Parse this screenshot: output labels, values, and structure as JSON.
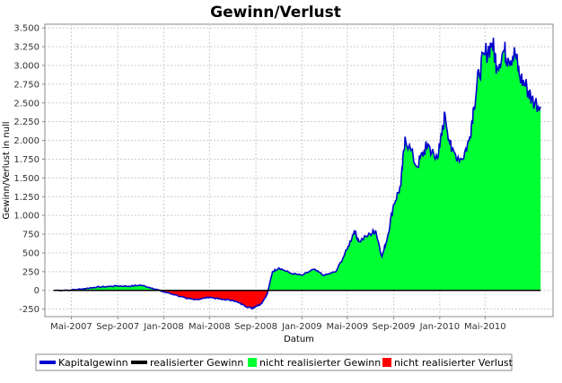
{
  "chart_data": {
    "type": "area",
    "title": "Gewinn/Verlust",
    "xlabel": "Datum",
    "ylabel": "Gewinn/Verlust in null",
    "ylim": [
      -350,
      3550
    ],
    "xlim": [
      "2007-02-20",
      "2010-10-28"
    ],
    "yticks": [
      -250,
      0,
      250,
      500,
      750,
      1000,
      1250,
      1500,
      1750,
      2000,
      2250,
      2500,
      2750,
      3000,
      3250,
      3500
    ],
    "ytick_labels": [
      "-250",
      "0",
      "250",
      "500",
      "750",
      "1.000",
      "1.250",
      "1.500",
      "1.750",
      "2.000",
      "2.250",
      "2.500",
      "2.750",
      "3.000",
      "3.250",
      "3.500"
    ],
    "xticks": [
      "2007-05-01",
      "2007-09-01",
      "2008-01-01",
      "2008-05-01",
      "2008-09-01",
      "2009-01-01",
      "2009-05-01",
      "2009-09-01",
      "2010-01-01",
      "2010-05-01"
    ],
    "xtick_labels": [
      "Mai-2007",
      "Sep-2007",
      "Jan-2008",
      "Mai-2008",
      "Sep-2008",
      "Jan-2009",
      "Mai-2009",
      "Sep-2009",
      "Jan-2010",
      "Mai-2010"
    ],
    "grid": true,
    "legend_position": "bottom",
    "series": [
      {
        "name": "Kapitalgewinn",
        "color": "#0000cc",
        "x": [
          "2007-03-15",
          "2007-05-01",
          "2007-06-01",
          "2007-07-01",
          "2007-08-01",
          "2007-09-01",
          "2007-10-01",
          "2007-11-01",
          "2007-12-01",
          "2008-01-01",
          "2008-02-01",
          "2008-03-01",
          "2008-04-01",
          "2008-05-01",
          "2008-06-01",
          "2008-07-01",
          "2008-08-01",
          "2008-08-20",
          "2008-09-01",
          "2008-09-15",
          "2008-10-01",
          "2008-10-15",
          "2008-11-01",
          "2008-12-01",
          "2009-01-01",
          "2009-02-01",
          "2009-03-01",
          "2009-04-01",
          "2009-05-01",
          "2009-05-20",
          "2009-06-01",
          "2009-07-01",
          "2009-07-15",
          "2009-08-01",
          "2009-08-15",
          "2009-09-01",
          "2009-09-20",
          "2009-10-01",
          "2009-11-01",
          "2009-11-20",
          "2009-12-01",
          "2009-12-20",
          "2010-01-01",
          "2010-01-15",
          "2010-02-01",
          "2010-03-01",
          "2010-03-20",
          "2010-04-01",
          "2010-04-15",
          "2010-05-01",
          "2010-05-20",
          "2010-06-01",
          "2010-06-20",
          "2010-07-01",
          "2010-07-20",
          "2010-08-01",
          "2010-08-20",
          "2010-09-01",
          "2010-09-25"
        ],
        "values": [
          0,
          5,
          20,
          40,
          50,
          60,
          55,
          70,
          30,
          -20,
          -60,
          -110,
          -120,
          -90,
          -120,
          -130,
          -200,
          -240,
          -210,
          -180,
          -50,
          250,
          300,
          230,
          200,
          280,
          200,
          250,
          550,
          800,
          650,
          750,
          800,
          450,
          700,
          1150,
          1400,
          2050,
          1650,
          1850,
          1950,
          1750,
          1900,
          2350,
          1850,
          1750,
          2000,
          2450,
          2900,
          3150,
          3300,
          3000,
          3200,
          3100,
          3150,
          2850,
          2700,
          2550,
          2450
        ]
      },
      {
        "name": "realisierter Gewinn",
        "color": "#000000",
        "x": [
          "2007-03-15",
          "2010-09-25"
        ],
        "values": [
          0,
          0
        ]
      },
      {
        "name": "nicht realisierter Gewinn",
        "color": "#00ff33"
      },
      {
        "name": "nicht realisierter Verlust",
        "color": "#ff0000"
      }
    ]
  }
}
